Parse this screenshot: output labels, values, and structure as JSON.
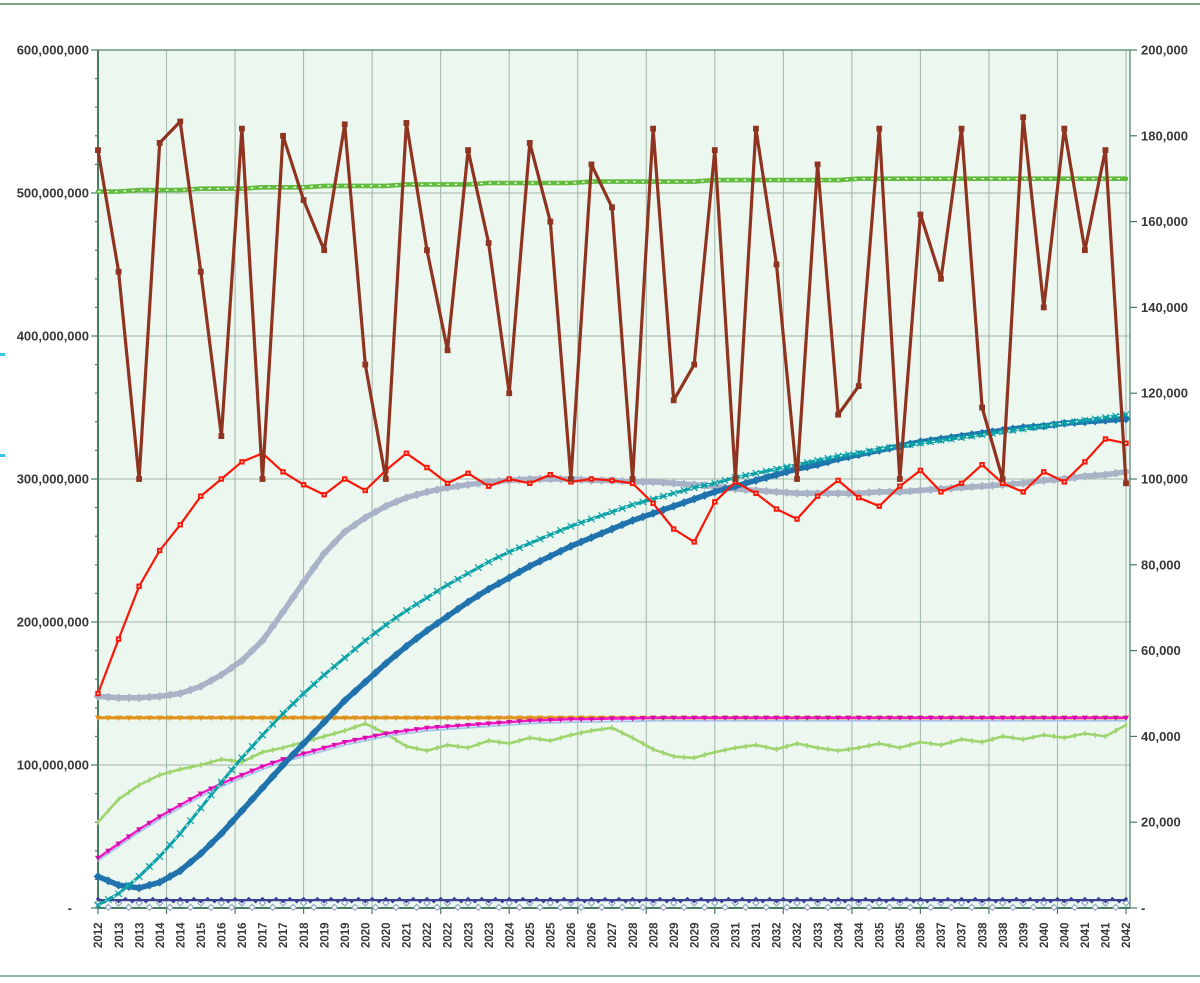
{
  "frame": {
    "top_line_color": "#7EA687",
    "bottom_line_color": "#93B39B",
    "edge_dash_color": "#35C6E3",
    "page_bg": "#FFFFFF"
  },
  "chart_data": {
    "type": "line",
    "title": "",
    "xlabel": "",
    "ylabel": "",
    "plot_bg": "#ECF7EF",
    "grid_color": "#9FB5A9",
    "border_color": "#63907B",
    "axis_color": "#4A7A64",
    "label_color": "#383838",
    "grid": "on",
    "legend": "none",
    "values_unit": "millions of left-axis units",
    "left_axis": {
      "min": 0,
      "max": 600000000,
      "major": 100000000,
      "minor": 20000000,
      "ticks": [
        "600,000,000",
        "500,000,000",
        "400,000,000",
        "300,000,000",
        "200,000,000",
        "100,000,000",
        "-"
      ]
    },
    "right_axis": {
      "min": 0,
      "max": 200000,
      "major": 20000,
      "ticks": [
        "200,000",
        "180,000",
        "160,000",
        "140,000",
        "120,000",
        "100,000",
        "80,000",
        "60,000",
        "40,000",
        "20,000",
        "-"
      ]
    },
    "x_gridline_years": [
      2012,
      2014,
      2016,
      2018,
      2020,
      2022,
      2024,
      2026,
      2028,
      2030,
      2032,
      2034,
      2036,
      2038,
      2040,
      2042
    ],
    "x_labels": [
      "2012",
      "2013",
      "2013",
      "2014",
      "2014",
      "2015",
      "2016",
      "2016",
      "2017",
      "2017",
      "2018",
      "2019",
      "2019",
      "2020",
      "2020",
      "2021",
      "2022",
      "2022",
      "2023",
      "2023",
      "2024",
      "2025",
      "2025",
      "2026",
      "2026",
      "2027",
      "2028",
      "2028",
      "2029",
      "2029",
      "2030",
      "2031",
      "2031",
      "2032",
      "2032",
      "2033",
      "2034",
      "2034",
      "2035",
      "2035",
      "2036",
      "2037",
      "2037",
      "2038",
      "2038",
      "2039",
      "2040",
      "2040",
      "2041",
      "2041",
      "2042"
    ],
    "series": [
      {
        "name": "flat-open-diamond-chain",
        "color": "#8FA0C8",
        "width": 0,
        "line": false,
        "marker": {
          "type": "diamond_open",
          "size": 3,
          "density": 2,
          "zigzag": 2.2
        },
        "values": [
          2,
          2,
          2,
          2,
          2,
          2,
          2,
          2,
          2,
          2,
          2,
          2,
          2,
          2,
          2,
          2,
          2,
          2,
          2,
          2,
          2,
          2,
          2,
          2,
          2,
          2,
          2,
          2,
          2,
          2,
          2,
          2,
          2,
          2,
          2,
          2,
          2,
          2,
          2,
          2,
          2,
          2,
          2,
          2,
          2,
          2,
          2,
          2,
          2,
          2,
          2
        ]
      },
      {
        "name": "navy-flat",
        "color": "#3A4193",
        "width": 2.2,
        "line": true,
        "marker": {
          "type": "diamond",
          "size": 2.2,
          "density": 3,
          "zigzag": 1.2
        },
        "values": [
          5.5,
          5.5,
          5.5,
          5.5,
          5.5,
          5.5,
          5.5,
          5.5,
          5.5,
          5.5,
          5.5,
          5.5,
          5.5,
          5.5,
          5.5,
          5.5,
          5.5,
          5.5,
          5.5,
          5.5,
          5.5,
          5.5,
          5.5,
          5.5,
          5.5,
          5.5,
          5.5,
          5.5,
          5.5,
          5.5,
          5.5,
          5.5,
          5.5,
          5.5,
          5.5,
          5.5,
          5.5,
          5.5,
          5.5,
          5.5,
          5.5,
          5.5,
          5.5,
          5.5,
          5.5,
          5.5,
          5.5,
          5.5,
          5.5,
          5.5,
          5.5
        ]
      },
      {
        "name": "orange-flat",
        "color": "#E0931C",
        "width": 3.2,
        "line": true,
        "marker": {
          "type": "tri_down",
          "size": 3.2,
          "density": 2
        },
        "values": [
          133,
          133,
          133,
          133,
          133,
          133,
          133,
          133,
          133,
          133,
          133,
          133,
          133,
          133,
          133,
          133,
          133,
          133,
          133,
          133,
          133,
          133,
          133,
          133,
          133,
          133,
          133,
          133,
          133,
          133,
          133,
          133,
          133,
          133,
          133,
          133,
          133,
          133,
          133,
          133,
          133,
          133,
          133,
          133,
          133,
          133,
          133,
          133,
          133,
          133,
          133
        ]
      },
      {
        "name": "light-green-noisy",
        "color": "#9ED46E",
        "width": 2.6,
        "line": true,
        "marker": {
          "type": "v_dash",
          "size": 2.6,
          "density": 2
        },
        "values": [
          60,
          76,
          86,
          93,
          97,
          100,
          104,
          102,
          109,
          112,
          116,
          120,
          124,
          129,
          122,
          113,
          110,
          114,
          112,
          117,
          115,
          119,
          117,
          121,
          124,
          126,
          119,
          111,
          106,
          105,
          109,
          112,
          114,
          111,
          115,
          112,
          110,
          112,
          115,
          112,
          116,
          114,
          118,
          116,
          120,
          118,
          121,
          119,
          122,
          120,
          128
        ]
      },
      {
        "name": "pale-blue-under-magenta",
        "color": "#A6C5E8",
        "width": 1.8,
        "line": true,
        "marker": {
          "type": "none"
        },
        "values": [
          33,
          43,
          53,
          62,
          70,
          78,
          85,
          91,
          97,
          102,
          106,
          110,
          114,
          117,
          120,
          122,
          124,
          125,
          126,
          127,
          128,
          129,
          129.5,
          130,
          130,
          130.5,
          130.5,
          131,
          131,
          131,
          131,
          131,
          131,
          131,
          131,
          131,
          131,
          131,
          131,
          131,
          131,
          131,
          131,
          131,
          131,
          131,
          131,
          131,
          131,
          131,
          131
        ]
      },
      {
        "name": "magenta",
        "color": "#F416C8",
        "width": 2.4,
        "line": true,
        "marker": {
          "type": "tri_down",
          "size": 3,
          "density": 2,
          "marker_color": "#D10FAC"
        },
        "values": [
          35,
          45,
          55,
          64,
          72,
          80,
          87,
          93,
          99,
          104,
          108,
          112,
          116,
          119,
          122,
          124,
          126,
          127,
          128,
          129,
          130,
          131,
          131.5,
          132,
          132,
          132.5,
          132.5,
          133,
          133,
          133,
          133,
          133,
          133,
          133,
          133,
          133,
          133,
          133,
          133,
          133,
          133,
          133,
          133,
          133,
          133,
          133,
          133,
          133,
          133,
          133,
          133
        ]
      },
      {
        "name": "gray-scurve",
        "color": "#A9B3C7",
        "width": 5.5,
        "line": true,
        "marker": {
          "type": "diamond",
          "size": 4.4,
          "density": 2
        },
        "values": [
          148,
          147,
          147,
          148,
          150,
          155,
          163,
          173,
          187,
          207,
          228,
          248,
          263,
          273,
          281,
          287,
          291,
          294,
          296,
          298,
          299,
          300,
          300,
          300,
          299,
          299,
          298,
          298,
          297,
          296,
          295,
          293,
          292,
          291,
          290,
          290,
          290,
          290,
          291,
          291,
          292,
          293,
          294,
          295,
          296,
          297,
          299,
          300,
          302,
          303,
          305
        ]
      },
      {
        "name": "dark-blue-scurve",
        "color": "#2173AE",
        "width": 5.5,
        "line": true,
        "marker": {
          "type": "diamond",
          "size": 4.4,
          "density": 2
        },
        "values": [
          22,
          16,
          14,
          18,
          26,
          38,
          52,
          68,
          84,
          100,
          115,
          130,
          145,
          158,
          171,
          183,
          194,
          204,
          214,
          223,
          231,
          239,
          246,
          253,
          259,
          265,
          271,
          276,
          281,
          286,
          291,
          295,
          299,
          303,
          307,
          310,
          314,
          317,
          320,
          323,
          326,
          328,
          330,
          332,
          334,
          336,
          337,
          339,
          340,
          341,
          342
        ]
      },
      {
        "name": "teal-scurve",
        "color": "#0AA1A7",
        "width": 3,
        "line": true,
        "dash_overlay": "#E6F5EE",
        "marker": {
          "type": "x_cross",
          "size": 3.2,
          "density": 2
        },
        "values": [
          2,
          10,
          22,
          36,
          52,
          70,
          88,
          105,
          121,
          136,
          150,
          163,
          175,
          187,
          198,
          208,
          217,
          226,
          234,
          242,
          249,
          255,
          261,
          267,
          272,
          277,
          282,
          286,
          290,
          294,
          297,
          301,
          304,
          307,
          310,
          313,
          316,
          318,
          321,
          323,
          325,
          327,
          329,
          331,
          333,
          335,
          337,
          339,
          341,
          343,
          345
        ]
      },
      {
        "name": "green-flat-500m",
        "color": "#62BC3E",
        "width": 4.6,
        "line": true,
        "dash_overlay": "#FFFFFF",
        "marker": {
          "type": "none"
        },
        "values": [
          501,
          501,
          502,
          502,
          502,
          503,
          503,
          503,
          504,
          504,
          504,
          505,
          505,
          505,
          505,
          506,
          506,
          506,
          506,
          507,
          507,
          507,
          507,
          507,
          508,
          508,
          508,
          508,
          508,
          508,
          509,
          509,
          509,
          509,
          509,
          509,
          509,
          510,
          510,
          510,
          510,
          510,
          510,
          510,
          510,
          510,
          510,
          510,
          510,
          510,
          510
        ]
      },
      {
        "name": "red-oscillating",
        "color": "#F81708",
        "width": 2.2,
        "line": true,
        "marker": {
          "type": "square_dot",
          "size": 2.7,
          "density": 1
        },
        "values": [
          150,
          188,
          225,
          250,
          268,
          288,
          300,
          312,
          318,
          305,
          296,
          289,
          300,
          292,
          306,
          318,
          308,
          297,
          304,
          295,
          300,
          297,
          303,
          298,
          300,
          299,
          297,
          283,
          265,
          256,
          284,
          298,
          290,
          279,
          272,
          288,
          299,
          287,
          281,
          295,
          306,
          291,
          297,
          310,
          297,
          291,
          305,
          298,
          312,
          328,
          325
        ]
      },
      {
        "name": "brick-red-noisy",
        "color": "#8E3420",
        "width": 3.2,
        "line": true,
        "marker": {
          "type": "square",
          "size": 2.9,
          "density": 1
        },
        "values": [
          530,
          445,
          300,
          535,
          550,
          445,
          330,
          545,
          300,
          540,
          495,
          460,
          548,
          380,
          300,
          549,
          460,
          390,
          530,
          465,
          360,
          535,
          480,
          300,
          520,
          490,
          300,
          545,
          355,
          380,
          530,
          300,
          545,
          450,
          300,
          520,
          345,
          365,
          545,
          300,
          485,
          440,
          545,
          350,
          300,
          553,
          420,
          545,
          460,
          530,
          297
        ]
      }
    ]
  }
}
